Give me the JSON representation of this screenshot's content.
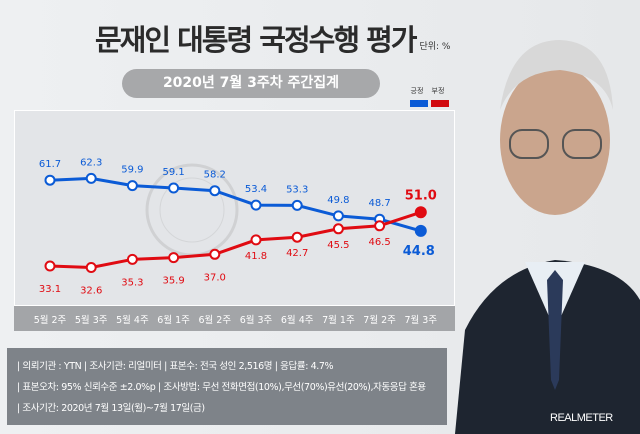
{
  "header": {
    "title": "문재인 대통령 국정수행 평가",
    "unit": "단위: %",
    "period_badge": "2020년 7월 3주차 주간집계"
  },
  "legend": [
    {
      "label": "긍정",
      "color": "#0b5bd6"
    },
    {
      "label": "부정",
      "color": "#e00b12"
    }
  ],
  "chart_data": {
    "type": "line",
    "categories": [
      "5월 2주",
      "5월 3주",
      "5월 4주",
      "6월 1주",
      "6월 2주",
      "6월 3주",
      "6월 4주",
      "7월 1주",
      "7월 2주",
      "7월 3주"
    ],
    "series": [
      {
        "name": "긍정",
        "color": "#0b5bd6",
        "values": [
          61.7,
          62.3,
          59.9,
          59.1,
          58.2,
          53.4,
          53.3,
          49.8,
          48.7,
          44.8
        ],
        "labels": [
          "61.7",
          "62.3",
          "59.9",
          "59.1",
          "58.2",
          "53.4",
          "53.3",
          "49.8",
          "48.7",
          "44.8"
        ]
      },
      {
        "name": "부정",
        "color": "#e00b12",
        "values": [
          33.1,
          32.6,
          35.3,
          35.9,
          37.0,
          41.8,
          42.7,
          45.5,
          46.5,
          51.0
        ],
        "labels": [
          "33.1",
          "32.6",
          "35.3",
          "35.9",
          "37.0",
          "41.8",
          "42.7",
          "45.5",
          "46.5",
          "51.0"
        ]
      }
    ],
    "grid": false,
    "legend_position": "top-right"
  },
  "info": {
    "line1": "| 의뢰기관 : YTN  |  조사기관: 리얼미터 |  표본수: 전국 성인 2,516명  |  응답률: 4.7%",
    "line2": "| 표본오차: 95% 신뢰수준 ±2.0%p |  조사방법: 무선 전화면접(10%),무선(70%)유선(20%),자동응답 혼용",
    "line3": "| 조사기간: 2020년 7월 13일(월)~7월 17일(금)"
  },
  "brand": "REALMETER"
}
